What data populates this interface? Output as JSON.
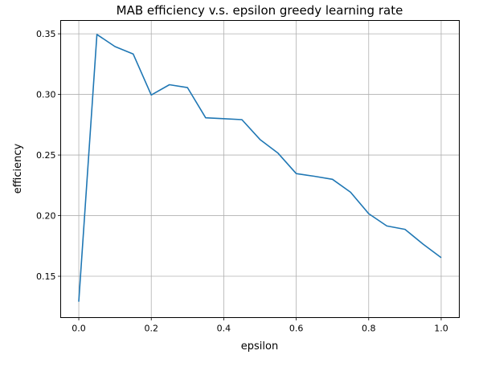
{
  "chart_data": {
    "type": "line",
    "title": "MAB efficiency v.s. epsilon greedy learning rate",
    "xlabel": "epsilon",
    "ylabel": "efficiency",
    "xlim": [
      -0.05,
      1.05
    ],
    "ylim": [
      0.1159,
      0.361
    ],
    "grid": true,
    "xticks": [
      0.0,
      0.2,
      0.4,
      0.6,
      0.8,
      1.0
    ],
    "xtick_labels": [
      "0.0",
      "0.2",
      "0.4",
      "0.6",
      "0.8",
      "1.0"
    ],
    "yticks": [
      0.15,
      0.2,
      0.25,
      0.3,
      0.35
    ],
    "ytick_labels": [
      "0.15",
      "0.20",
      "0.25",
      "0.30",
      "0.35"
    ],
    "series": [
      {
        "color": "#1f77b4",
        "x": [
          0.0,
          0.05,
          0.1,
          0.15,
          0.2,
          0.25,
          0.3,
          0.35,
          0.4,
          0.45,
          0.5,
          0.55,
          0.6,
          0.65,
          0.7,
          0.75,
          0.8,
          0.85,
          0.9,
          0.95,
          1.0
        ],
        "y": [
          0.129,
          0.3495,
          0.3395,
          0.3334,
          0.2995,
          0.308,
          0.3056,
          0.2807,
          0.28,
          0.2792,
          0.2628,
          0.2515,
          0.2347,
          0.2325,
          0.23,
          0.2193,
          0.2016,
          0.1915,
          0.1887,
          0.1765,
          0.1653
        ]
      }
    ]
  }
}
